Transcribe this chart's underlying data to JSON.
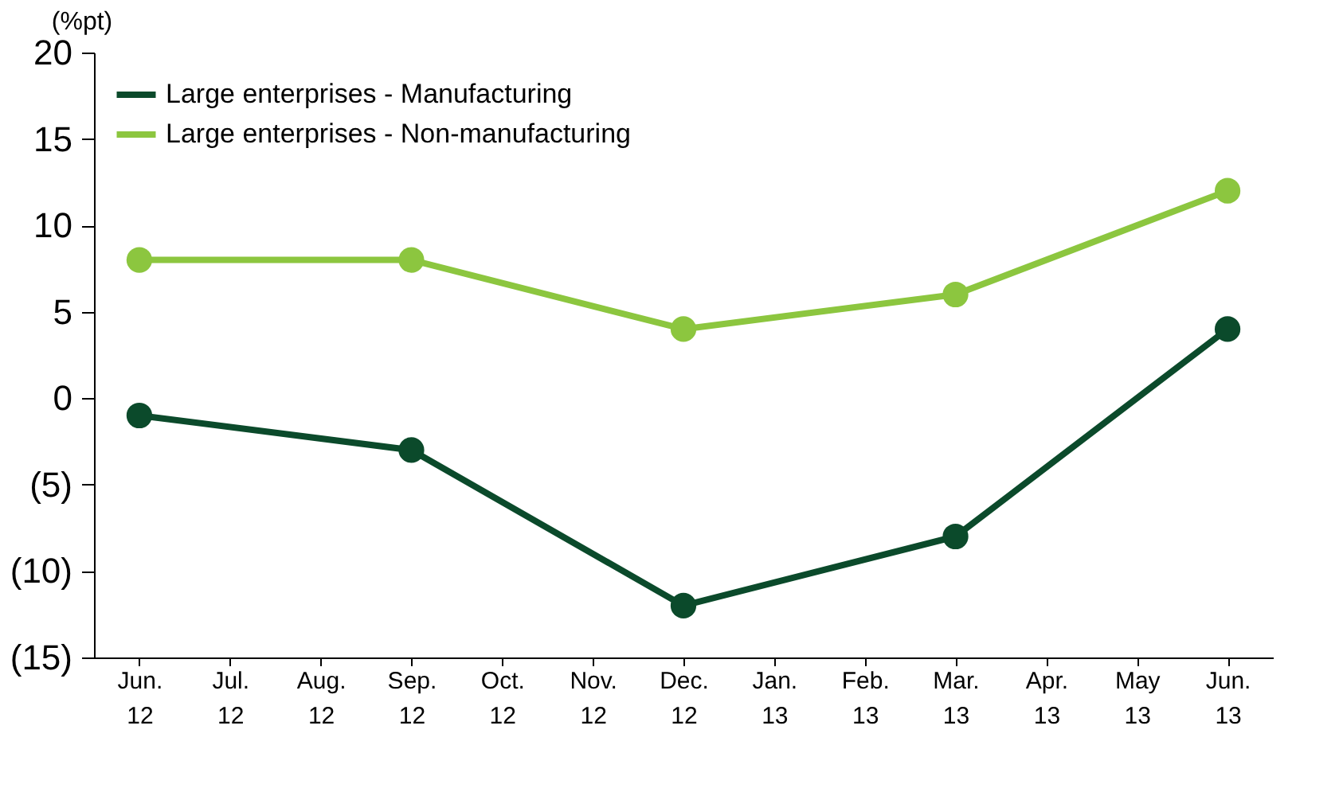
{
  "chart_data": {
    "type": "line",
    "ylabel": "(%pt)",
    "categories": [
      "Jun. 12",
      "Jul. 12",
      "Aug. 12",
      "Sep. 12",
      "Oct. 12",
      "Nov. 12",
      "Dec. 12",
      "Jan. 13",
      "Feb. 13",
      "Mar. 13",
      "Apr. 13",
      "May 13",
      "Jun. 13"
    ],
    "series": [
      {
        "name": "Large enterprises - Manufacturing",
        "color": "#0b4a2b",
        "values": [
          -1,
          null,
          null,
          -3,
          null,
          null,
          -12,
          null,
          null,
          -8,
          null,
          null,
          4
        ]
      },
      {
        "name": "Large enterprises - Non-manufacturing",
        "color": "#8cc63f",
        "values": [
          8,
          null,
          null,
          8,
          null,
          null,
          4,
          null,
          null,
          6,
          null,
          null,
          12
        ]
      }
    ],
    "ylim": [
      -15,
      20
    ],
    "yticks": [
      {
        "value": -15,
        "label": "(15)"
      },
      {
        "value": -10,
        "label": "(10)"
      },
      {
        "value": -5,
        "label": "(5)"
      },
      0,
      5,
      10,
      15,
      20
    ],
    "marker": "circle",
    "line_style": "solid",
    "grid": false,
    "legend": "top left"
  }
}
